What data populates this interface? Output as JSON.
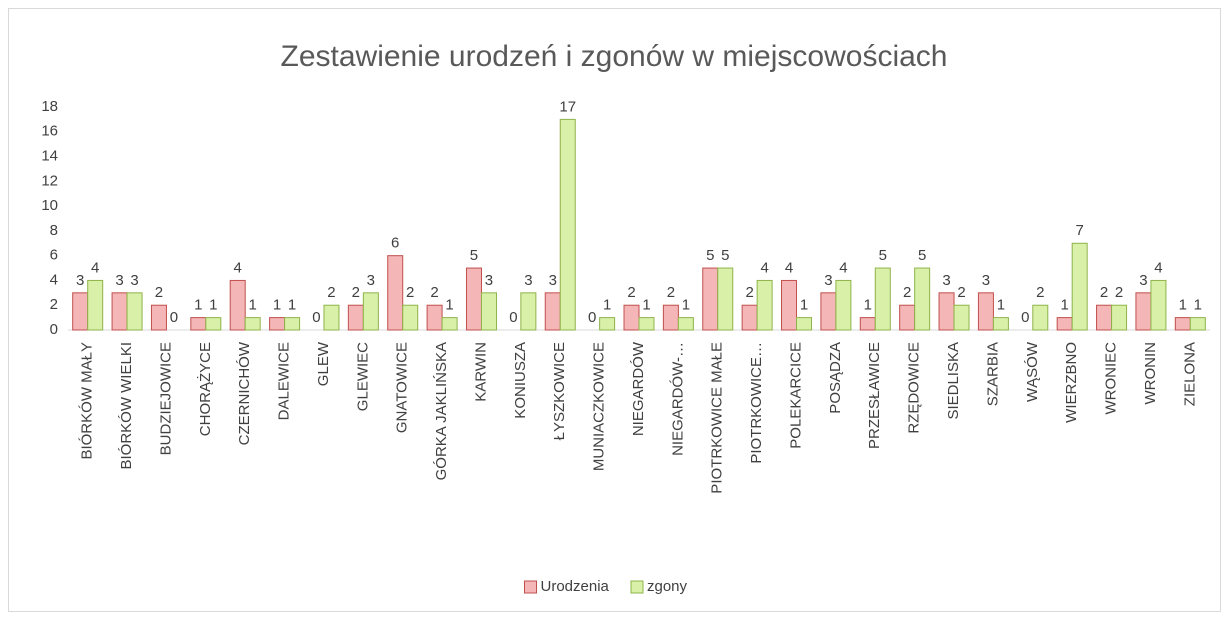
{
  "chart_data": {
    "type": "bar",
    "title": "Zestawienie urodzeń i zgonów w miejscowościach",
    "categories": [
      "BIÓRKÓW MAŁY",
      "BIÓRKÓW WIELKI",
      "BUDZIEJOWICE",
      "CHORĄŻYCE",
      "CZERNICHÓW",
      "DALEWICE",
      "GLEW",
      "GLEWIEC",
      "GNATOWICE",
      "GÓRKA JAKLIŃSKA",
      "KARWIN",
      "KONIUSZA",
      "ŁYSZKOWICE",
      "MUNIACZKOWICE",
      "NIEGARDÓW",
      "NIEGARDÓW-…",
      "PIOTRKOWICE MAŁE",
      "PIOTRKOWICE…",
      "POLEKARCICE",
      "POSĄDZA",
      "PRZESŁAWICE",
      "RZĘDOWICE",
      "SIEDLISKA",
      "SZARBIA",
      "WĄSÓW",
      "WIERZBNO",
      "WRONIEC",
      "WRONIN",
      "ZIELONA"
    ],
    "series": [
      {
        "name": "Urodzenia",
        "color": "#f4b6b6",
        "stroke": "#c0504d",
        "values": [
          3,
          3,
          2,
          1,
          4,
          1,
          0,
          2,
          6,
          2,
          5,
          0,
          3,
          0,
          2,
          2,
          5,
          2,
          4,
          3,
          1,
          2,
          3,
          3,
          0,
          1,
          2,
          3,
          1
        ]
      },
      {
        "name": "zgony",
        "color": "#d8f0a8",
        "stroke": "#8fb34a",
        "values": [
          4,
          3,
          0,
          1,
          1,
          1,
          2,
          3,
          2,
          1,
          3,
          3,
          17,
          1,
          1,
          1,
          5,
          4,
          1,
          4,
          5,
          5,
          2,
          1,
          2,
          7,
          2,
          4,
          1
        ]
      }
    ],
    "ylim": [
      0,
      18
    ],
    "yticks": [
      0,
      2,
      4,
      6,
      8,
      10,
      12,
      14,
      16,
      18
    ],
    "grid": false,
    "legend": "bottom",
    "data_labels": true
  }
}
